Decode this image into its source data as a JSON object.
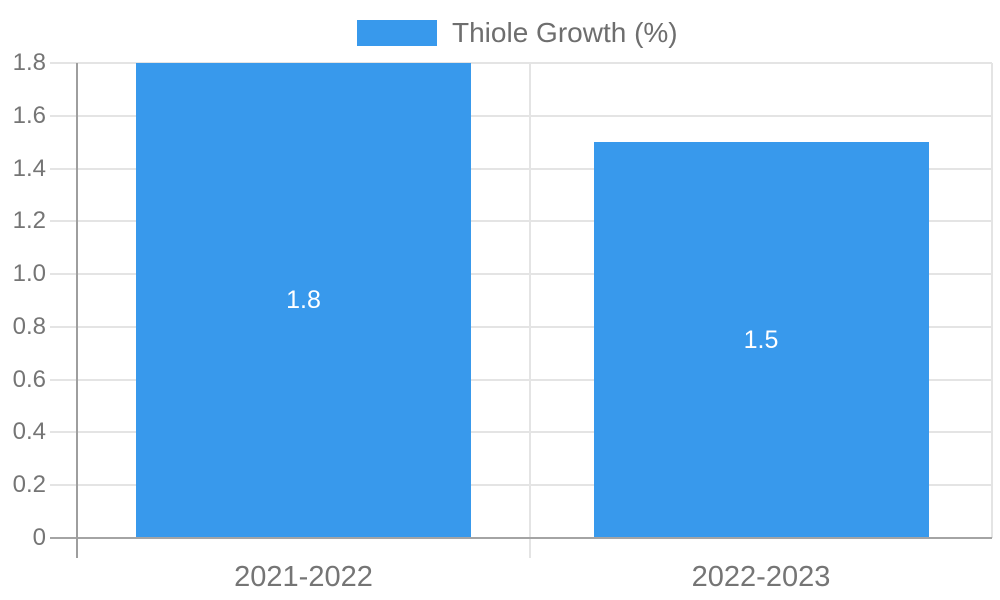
{
  "chart_data": {
    "type": "bar",
    "categories": [
      "2021-2022",
      "2022-2023"
    ],
    "series": [
      {
        "name": "Thiole Growth (%)",
        "values": [
          1.8,
          1.5
        ]
      }
    ],
    "value_labels": [
      "1.8",
      "1.5"
    ],
    "title": "",
    "xlabel": "",
    "ylabel": "",
    "ylim": [
      0,
      1.8
    ],
    "ytick_labels": [
      "0",
      "0.2",
      "0.4",
      "0.6",
      "0.8",
      "1.0",
      "1.2",
      "1.4",
      "1.6",
      "1.8"
    ],
    "legend": {
      "position": "top",
      "label": "Thiole Growth (%)"
    },
    "grid": true,
    "colors": {
      "bar": "#3899ec",
      "grid": "#e4e4e4",
      "axis": "#9e9e9e",
      "tick_label": "#757575",
      "legend_text": "#6e6e6e",
      "value_label": "#ffffff",
      "background": "#ffffff"
    }
  }
}
